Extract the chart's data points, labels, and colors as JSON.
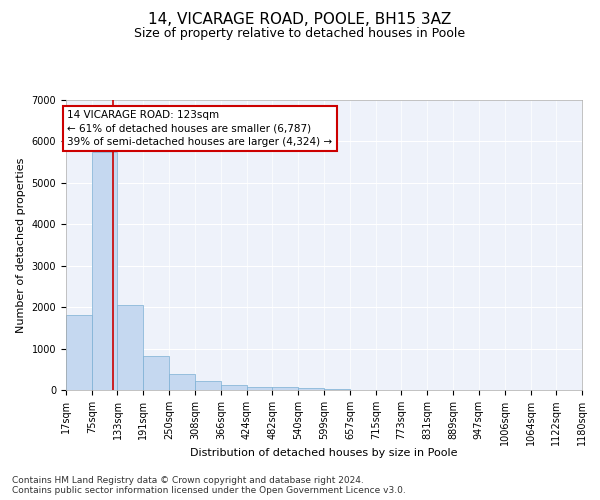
{
  "title1": "14, VICARAGE ROAD, POOLE, BH15 3AZ",
  "title2": "Size of property relative to detached houses in Poole",
  "xlabel": "Distribution of detached houses by size in Poole",
  "ylabel": "Number of detached properties",
  "bar_values": [
    1800,
    5750,
    2050,
    830,
    380,
    220,
    120,
    75,
    75,
    50,
    30,
    10,
    5,
    0,
    0,
    0,
    0,
    0,
    0,
    0
  ],
  "bin_edges": [
    17,
    75,
    133,
    191,
    250,
    308,
    366,
    424,
    482,
    540,
    599,
    657,
    715,
    773,
    831,
    889,
    947,
    1006,
    1064,
    1122,
    1180
  ],
  "xlabels": [
    "17sqm",
    "75sqm",
    "133sqm",
    "191sqm",
    "250sqm",
    "308sqm",
    "366sqm",
    "424sqm",
    "482sqm",
    "540sqm",
    "599sqm",
    "657sqm",
    "715sqm",
    "773sqm",
    "831sqm",
    "889sqm",
    "947sqm",
    "1006sqm",
    "1064sqm",
    "1122sqm",
    "1180sqm"
  ],
  "bar_color": "#c5d8f0",
  "bar_edge_color": "#7bafd4",
  "property_size": 123,
  "vline_color": "#cc0000",
  "annotation_line1": "14 VICARAGE ROAD: 123sqm",
  "annotation_line2": "← 61% of detached houses are smaller (6,787)",
  "annotation_line3": "39% of semi-detached houses are larger (4,324) →",
  "annotation_box_color": "#ffffff",
  "annotation_box_edge": "#cc0000",
  "ylim": [
    0,
    7000
  ],
  "yticks": [
    0,
    1000,
    2000,
    3000,
    4000,
    5000,
    6000,
    7000
  ],
  "footer_text": "Contains HM Land Registry data © Crown copyright and database right 2024.\nContains public sector information licensed under the Open Government Licence v3.0.",
  "plot_bg_color": "#eef2fa",
  "title1_fontsize": 11,
  "title2_fontsize": 9,
  "axis_label_fontsize": 8,
  "tick_fontsize": 7,
  "annotation_fontsize": 7.5,
  "footer_fontsize": 6.5
}
